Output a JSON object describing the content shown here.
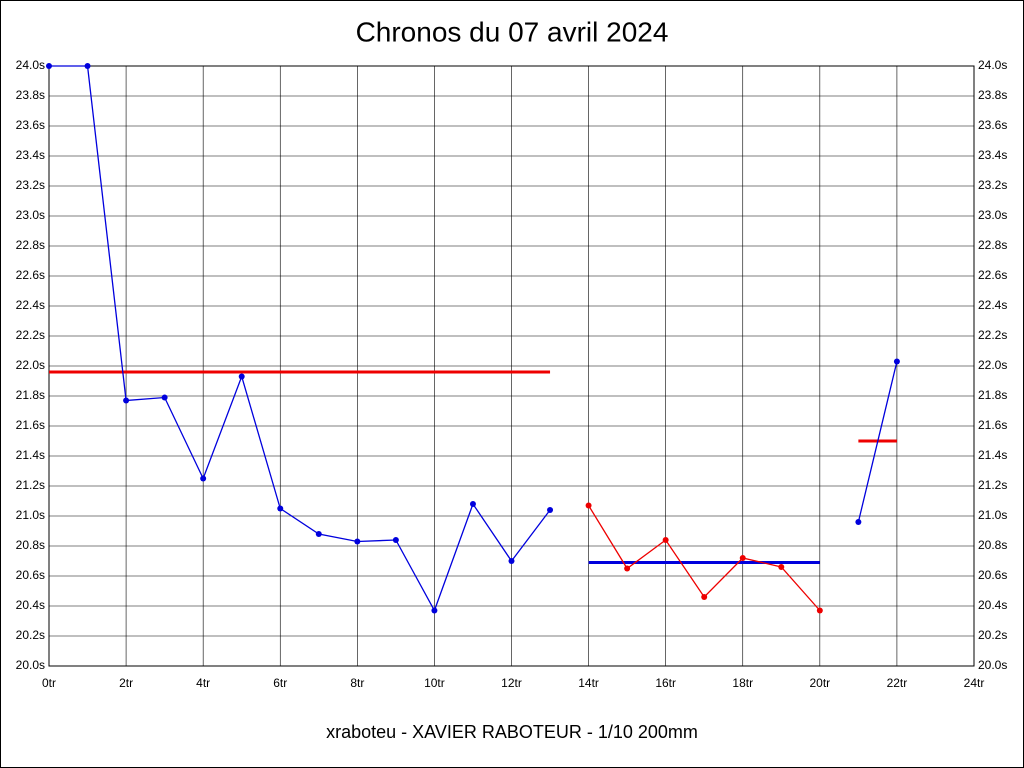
{
  "chart_data": {
    "type": "line",
    "title": "Chronos du 07 avril 2024",
    "footer": "xraboteu - XAVIER RABOTEUR - 1/10 200mm",
    "x": [
      0,
      1,
      2,
      3,
      4,
      5,
      6,
      7,
      8,
      9,
      10,
      11,
      12,
      13,
      14,
      15,
      16,
      17,
      18,
      19,
      20,
      21,
      22
    ],
    "series": [
      {
        "color": "#0000dd",
        "values": [
          24.0,
          24.0,
          21.77,
          21.79,
          21.25,
          21.93,
          21.05,
          20.88,
          20.83,
          20.84,
          20.37,
          21.08,
          20.7,
          21.04,
          null,
          null,
          null,
          null,
          null,
          null,
          null,
          20.96,
          22.03
        ]
      },
      {
        "color": "#ee0000",
        "values": [
          null,
          null,
          null,
          null,
          null,
          null,
          null,
          null,
          null,
          null,
          null,
          null,
          null,
          null,
          21.07,
          20.65,
          20.84,
          20.46,
          20.72,
          20.66,
          20.37,
          null,
          null
        ]
      }
    ],
    "reference_lines": [
      {
        "value": 21.96,
        "from": 0,
        "to": 13,
        "color": "#ee0000"
      },
      {
        "value": 20.69,
        "from": 14,
        "to": 20,
        "color": "#0000dd"
      },
      {
        "value": 21.5,
        "from": 21,
        "to": 22,
        "color": "#ee0000"
      }
    ],
    "xlim": [
      0,
      24
    ],
    "xticks": [
      {
        "value": 0,
        "label": "0tr"
      },
      {
        "value": 2,
        "label": "2tr"
      },
      {
        "value": 4,
        "label": "4tr"
      },
      {
        "value": 6,
        "label": "6tr"
      },
      {
        "value": 8,
        "label": "8tr"
      },
      {
        "value": 10,
        "label": "10tr"
      },
      {
        "value": 12,
        "label": "12tr"
      },
      {
        "value": 14,
        "label": "14tr"
      },
      {
        "value": 16,
        "label": "16tr"
      },
      {
        "value": 18,
        "label": "18tr"
      },
      {
        "value": 20,
        "label": "20tr"
      },
      {
        "value": 22,
        "label": "22tr"
      },
      {
        "value": 24,
        "label": "24tr"
      }
    ],
    "ylim": [
      20,
      24
    ],
    "yticks": [
      {
        "value": 20.0,
        "label": "20.0s"
      },
      {
        "value": 20.2,
        "label": "20.2s"
      },
      {
        "value": 20.4,
        "label": "20.4s"
      },
      {
        "value": 20.6,
        "label": "20.6s"
      },
      {
        "value": 20.8,
        "label": "20.8s"
      },
      {
        "value": 21.0,
        "label": "21.0s"
      },
      {
        "value": 21.2,
        "label": "21.2s"
      },
      {
        "value": 21.4,
        "label": "21.4s"
      },
      {
        "value": 21.6,
        "label": "21.6s"
      },
      {
        "value": 21.8,
        "label": "21.8s"
      },
      {
        "value": 22.0,
        "label": "22.0s"
      },
      {
        "value": 22.2,
        "label": "22.2s"
      },
      {
        "value": 22.4,
        "label": "22.4s"
      },
      {
        "value": 22.6,
        "label": "22.6s"
      },
      {
        "value": 22.8,
        "label": "22.8s"
      },
      {
        "value": 23.0,
        "label": "23.0s"
      },
      {
        "value": 23.2,
        "label": "23.2s"
      },
      {
        "value": 23.4,
        "label": "23.4s"
      },
      {
        "value": 23.6,
        "label": "23.6s"
      },
      {
        "value": 23.8,
        "label": "23.8s"
      },
      {
        "value": 24.0,
        "label": "24.0s"
      }
    ],
    "grid": true
  }
}
